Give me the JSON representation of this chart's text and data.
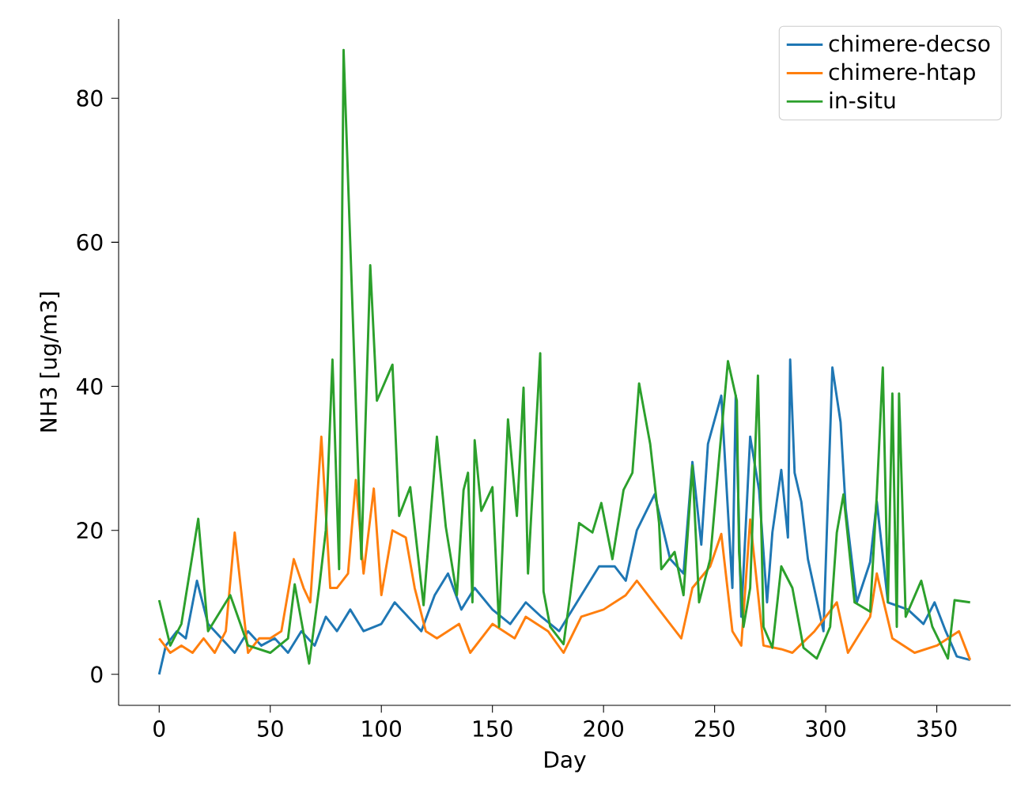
{
  "chart_data": {
    "type": "line",
    "xlabel": "Day",
    "ylabel": "NH3 [ug/m3]",
    "xlim": [
      -18.25,
      383.25
    ],
    "ylim": [
      -4.3,
      91
    ],
    "xticks": [
      0,
      50,
      100,
      150,
      200,
      250,
      300,
      350
    ],
    "yticks": [
      0,
      20,
      40,
      60,
      80
    ],
    "legend": "top right",
    "grid": false,
    "marker": "none",
    "line_style": "solid",
    "series": [
      {
        "name": "chimere-decso",
        "color": "#1f77b4",
        "x": [
          0,
          3,
          8,
          12,
          17,
          22,
          28,
          34,
          40,
          46,
          52,
          58,
          64,
          70,
          75,
          80,
          86,
          92,
          100,
          106,
          112,
          118,
          124,
          130,
          136,
          142,
          150,
          158,
          165,
          172,
          180,
          186,
          192,
          198,
          205,
          210,
          215,
          223,
          230,
          236,
          240,
          244,
          247,
          253,
          258,
          259.5,
          262,
          266,
          270,
          273.6,
          276,
          280,
          283,
          284,
          286,
          289,
          292,
          299,
          303,
          306.7,
          309,
          314,
          320,
          323,
          328,
          337,
          344,
          349,
          354,
          359,
          365
        ],
        "values": [
          0,
          4,
          6,
          5,
          13,
          7,
          5,
          3,
          6,
          4,
          5,
          3,
          6,
          4,
          8,
          6,
          9,
          6,
          7,
          10,
          8,
          6,
          11,
          14,
          9,
          12,
          9,
          7,
          10,
          8,
          6,
          9,
          12,
          15,
          15,
          13,
          20,
          25,
          16,
          14,
          29.5,
          18,
          32,
          38.7,
          12,
          38.7,
          8,
          33,
          25.6,
          10,
          19.7,
          28.4,
          19,
          43.7,
          28,
          24,
          16,
          6,
          42.6,
          35,
          23,
          10,
          15.6,
          24,
          10,
          9,
          7,
          10,
          6,
          2.5,
          2
        ]
      },
      {
        "name": "chimere-htap",
        "color": "#ff7f0e",
        "x": [
          0,
          5,
          10,
          15,
          20,
          25,
          30,
          34,
          40,
          45,
          50,
          55,
          60.6,
          65,
          68,
          73,
          77,
          80,
          85,
          88.5,
          92,
          96.6,
          100,
          105,
          111,
          115,
          120,
          125,
          135,
          140,
          150,
          160,
          165,
          175,
          182,
          190,
          200,
          210,
          215,
          225,
          235,
          240,
          248,
          253,
          258,
          262,
          266,
          272,
          280,
          285,
          295,
          305,
          310,
          320,
          323,
          330,
          340,
          350,
          360,
          365
        ],
        "values": [
          5,
          3,
          4,
          3,
          5,
          3,
          6,
          19.7,
          3,
          5,
          5,
          6,
          16,
          12,
          10,
          33,
          12,
          12,
          14,
          27,
          14,
          25.8,
          11,
          20,
          19,
          12,
          6,
          5,
          7,
          3,
          7,
          5,
          8,
          6,
          3,
          8,
          9,
          11,
          13,
          9,
          5,
          12,
          15,
          19.5,
          6,
          4,
          21.5,
          4,
          3.5,
          3,
          6,
          10,
          3,
          8,
          14,
          5,
          3,
          4,
          6,
          2
        ]
      },
      {
        "name": "in-situ",
        "color": "#2ca02c",
        "x": [
          0,
          5,
          10,
          17.6,
          22,
          32,
          40,
          50,
          58,
          61,
          67.5,
          72,
          75,
          78,
          81,
          83,
          88,
          91,
          95,
          98,
          105,
          108,
          113,
          119,
          125,
          129,
          134,
          137,
          139,
          141,
          142,
          145,
          150,
          153,
          157,
          161,
          164,
          166,
          171.5,
          173,
          176,
          182,
          185,
          189,
          195,
          199,
          204,
          209,
          213,
          216,
          221,
          225,
          226,
          232,
          236,
          240,
          243,
          248,
          252,
          256,
          260,
          261,
          263,
          266,
          269.5,
          272,
          276,
          280,
          285,
          290,
          296,
          302,
          305,
          308,
          313,
          320,
          323,
          325.7,
          328,
          330,
          332,
          333,
          336,
          343,
          348,
          355,
          358,
          365
        ],
        "values": [
          10.3,
          4,
          7,
          21.6,
          6,
          11,
          4,
          3,
          5,
          12.5,
          1.5,
          12,
          20,
          43.7,
          14.6,
          86.7,
          42,
          16,
          56.8,
          38,
          43,
          22,
          26,
          9.6,
          33,
          20.5,
          11,
          25.6,
          28,
          10,
          32.5,
          22.7,
          26,
          6.6,
          35.4,
          22,
          39.8,
          14,
          44.6,
          11.5,
          6.6,
          4.2,
          11,
          21,
          19.7,
          23.8,
          16,
          25.6,
          28,
          40.4,
          32,
          21,
          14.6,
          17,
          11,
          29,
          10,
          16,
          30,
          43.5,
          38,
          17,
          6.6,
          12,
          41.5,
          6.6,
          3.7,
          15,
          12,
          3.7,
          2.2,
          6.6,
          19.7,
          25,
          10,
          8.7,
          25,
          42.6,
          10,
          39,
          6.6,
          39,
          8,
          13,
          6.6,
          2.2,
          10.3,
          10
        ]
      }
    ]
  }
}
